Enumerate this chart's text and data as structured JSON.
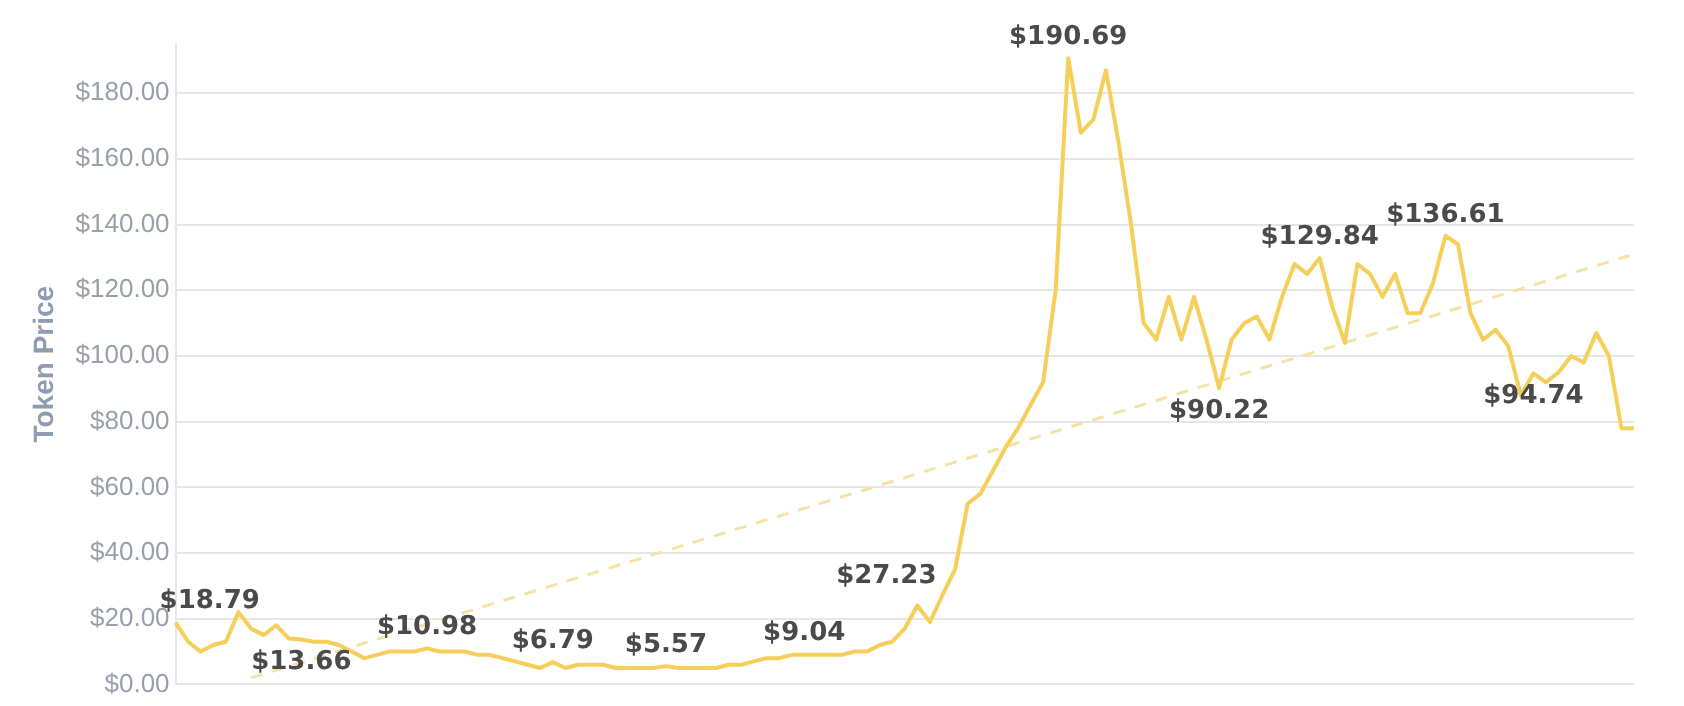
{
  "chart_data": {
    "type": "line",
    "ylabel": "Token Price",
    "categories": [
      null,
      null,
      null,
      null,
      null,
      null,
      null,
      null,
      null,
      null,
      null,
      null,
      null,
      null,
      null,
      null,
      null,
      null,
      null,
      null,
      null,
      null,
      null,
      null,
      null,
      null,
      null,
      null,
      null,
      null,
      null,
      null,
      null,
      null,
      null,
      null,
      null,
      null,
      null,
      null,
      null,
      null,
      null,
      null,
      null,
      null,
      null,
      null,
      null,
      null,
      null,
      null,
      null,
      null,
      null,
      null,
      null,
      null,
      null,
      null,
      null,
      null,
      null,
      null,
      null,
      null,
      null,
      null,
      null,
      null,
      null,
      null,
      null,
      null,
      null,
      null,
      null,
      null,
      null,
      null,
      null,
      null,
      null,
      null,
      null,
      null,
      null,
      null,
      null,
      null,
      null,
      null,
      null,
      null,
      null,
      null,
      null,
      null,
      null,
      null,
      null,
      null,
      null,
      null,
      null,
      null,
      null,
      null,
      null,
      null,
      null,
      null,
      null,
      null,
      null,
      null,
      null
    ],
    "series": [
      {
        "color": "#f5cf5a",
        "values": [
          18.79,
          13,
          10,
          12,
          13,
          22,
          17,
          15,
          18,
          14,
          13.66,
          13,
          13,
          12,
          10,
          8,
          9,
          10,
          10,
          10,
          10.98,
          10,
          10,
          10,
          9,
          9,
          8,
          7,
          6,
          5,
          6.79,
          5,
          6,
          6,
          6,
          5,
          5,
          5,
          5,
          5.57,
          5,
          5,
          5,
          5,
          6,
          6,
          7,
          8,
          8,
          9,
          9.04,
          9,
          9,
          9,
          10,
          10,
          12,
          13,
          17,
          24,
          19,
          27.23,
          35,
          55,
          58,
          65,
          72,
          78,
          85,
          92,
          120,
          190.69,
          168,
          172,
          187,
          165,
          140,
          110,
          105,
          118,
          105,
          118,
          105,
          90.22,
          105,
          110,
          112,
          105,
          118,
          128,
          125,
          129.84,
          115,
          104,
          128,
          125,
          118,
          125,
          113,
          113,
          122,
          136.61,
          134,
          113,
          105,
          108,
          103,
          88,
          94.74,
          92,
          95,
          100,
          98,
          107,
          100,
          78,
          78
        ],
        "value_labels": [
          "$18.79",
          null,
          null,
          null,
          null,
          null,
          null,
          null,
          null,
          null,
          "$13.66",
          null,
          null,
          null,
          null,
          null,
          null,
          null,
          null,
          null,
          "$10.98",
          null,
          null,
          null,
          null,
          null,
          null,
          null,
          null,
          null,
          "$6.79",
          null,
          null,
          null,
          null,
          null,
          null,
          null,
          null,
          "$5.57",
          null,
          null,
          null,
          null,
          null,
          null,
          null,
          null,
          null,
          null,
          "$9.04",
          null,
          null,
          null,
          null,
          null,
          null,
          null,
          null,
          null,
          null,
          "$27.23",
          null,
          null,
          null,
          null,
          null,
          null,
          null,
          null,
          null,
          "$190.69",
          null,
          null,
          null,
          null,
          null,
          null,
          null,
          null,
          null,
          null,
          null,
          "$90.22",
          null,
          null,
          null,
          null,
          null,
          null,
          null,
          "$129.84",
          null,
          null,
          null,
          null,
          null,
          null,
          null,
          null,
          null,
          "$136.61",
          null,
          null,
          null,
          null,
          null,
          null,
          "$94.74",
          null,
          null,
          null,
          null,
          null,
          null,
          null,
          null
        ]
      },
      {
        "type": "line",
        "color": "#f7e2a6",
        "line_style": "dashed",
        "values": [
          null,
          null,
          null,
          null,
          null,
          null,
          2,
          null,
          null,
          null,
          null,
          null,
          null,
          null,
          null,
          null,
          null,
          null,
          null,
          null,
          null,
          null,
          null,
          null,
          null,
          null,
          null,
          null,
          null,
          null,
          null,
          null,
          null,
          null,
          null,
          null,
          null,
          null,
          null,
          null,
          null,
          null,
          null,
          null,
          null,
          null,
          null,
          null,
          null,
          null,
          null,
          null,
          null,
          null,
          null,
          null,
          null,
          null,
          null,
          null,
          null,
          null,
          null,
          null,
          null,
          null,
          null,
          null,
          null,
          null,
          null,
          null,
          null,
          null,
          null,
          null,
          null,
          null,
          null,
          null,
          null,
          null,
          null,
          null,
          null,
          null,
          null,
          null,
          null,
          null,
          null,
          null,
          null,
          null,
          null,
          null,
          null,
          null,
          null,
          null,
          null,
          null,
          null,
          null,
          null,
          null,
          null,
          null,
          null,
          null,
          null,
          null,
          null,
          null,
          null,
          null,
          131
        ]
      }
    ],
    "ylim": [
      0,
      195
    ],
    "yticks": [
      {
        "value": 0,
        "label": "$0.00"
      },
      {
        "value": 20,
        "label": "$20.00"
      },
      {
        "value": 40,
        "label": "$40.00"
      },
      {
        "value": 60,
        "label": "$60.00"
      },
      {
        "value": 80,
        "label": "$80.00"
      },
      {
        "value": 100,
        "label": "$100.00"
      },
      {
        "value": 120,
        "label": "$120.00"
      },
      {
        "value": 140,
        "label": "$140.00"
      },
      {
        "value": 160,
        "label": "$160.00"
      },
      {
        "value": 180,
        "label": "$180.00"
      }
    ],
    "grid": "y",
    "legend": false,
    "marker": "none",
    "line_style": "solid",
    "tick_labels": "y"
  }
}
